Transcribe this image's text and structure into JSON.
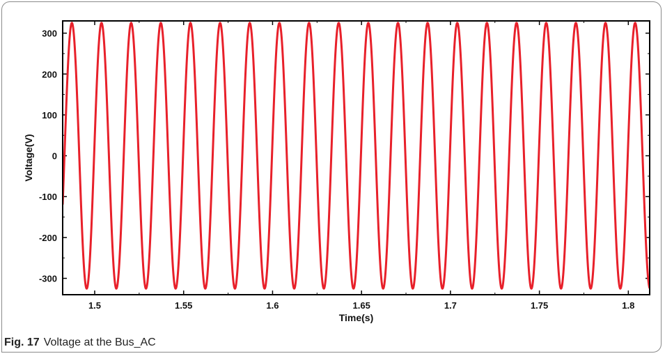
{
  "caption": {
    "label": "Fig. 17",
    "text": "Voltage at the Bus_AC"
  },
  "colors": {
    "series": "#e8202a",
    "axis": "#000000"
  },
  "chart_data": {
    "type": "line",
    "title": "",
    "xlabel": "Time(s)",
    "ylabel": "Voltage(V)",
    "xlim": [
      1.482,
      1.812
    ],
    "ylim": [
      -340,
      330
    ],
    "xticks": [
      1.5,
      1.55,
      1.6,
      1.65,
      1.7,
      1.75,
      1.8
    ],
    "xtick_labels": [
      "1.5",
      "1.55",
      "1.6",
      "1.65",
      "1.7",
      "1.75",
      "1.8"
    ],
    "yticks": [
      300,
      200,
      100,
      0,
      -100,
      -200,
      -300
    ],
    "ytick_labels": [
      "300",
      "200",
      "100",
      "0",
      "-100",
      "-200",
      "-300"
    ],
    "grid": false,
    "series": [
      {
        "waveform": "sinusoid",
        "amplitude": 325,
        "frequency_hz": 60,
        "zero_crossing_rising_at": 1.483
      }
    ]
  }
}
